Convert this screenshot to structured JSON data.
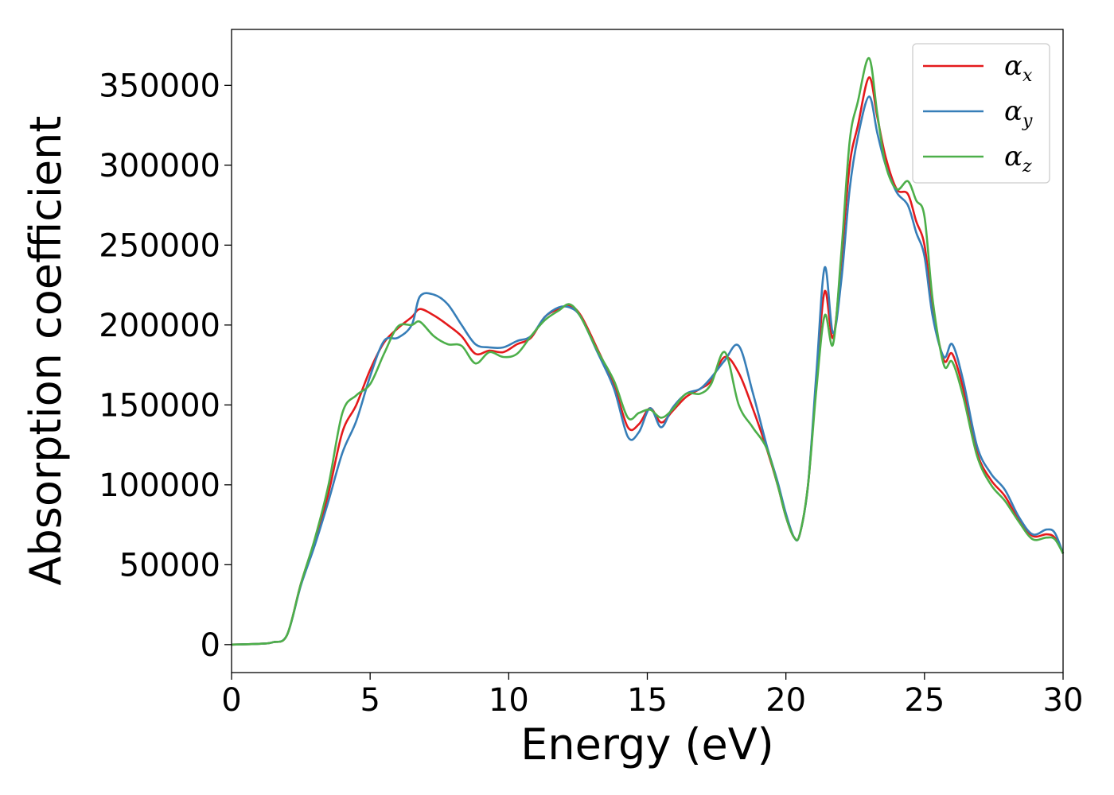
{
  "chart_data": {
    "type": "line",
    "xlabel": "Energy (eV)",
    "ylabel": "Absorption coefficient",
    "xlim": [
      0,
      30
    ],
    "ylim": [
      -17500,
      385000
    ],
    "xticks": [
      0,
      5,
      10,
      15,
      20,
      25,
      30
    ],
    "yticks": [
      0,
      50000,
      100000,
      150000,
      200000,
      250000,
      300000,
      350000
    ],
    "grid": false,
    "legend_position": "top-right",
    "series": [
      {
        "name": "α",
        "subscript": "x",
        "color": "#e41a1c",
        "x": [
          0,
          1,
          1.5,
          2,
          2.5,
          3,
          3.5,
          4,
          4.5,
          5,
          5.5,
          6,
          6.5,
          6.8,
          7.3,
          7.8,
          8.3,
          8.8,
          9.3,
          9.8,
          10.3,
          10.8,
          11.3,
          11.8,
          12.2,
          12.6,
          13.2,
          13.8,
          14.3,
          14.7,
          15.1,
          15.5,
          15.9,
          16.4,
          16.9,
          17.3,
          17.8,
          18.3,
          18.8,
          19.3,
          19.7,
          20.0,
          20.3,
          20.5,
          20.8,
          21.1,
          21.4,
          21.7,
          22.0,
          22.3,
          22.6,
          23.0,
          23.3,
          23.6,
          24.0,
          24.4,
          24.7,
          25.0,
          25.3,
          25.7,
          26.0,
          26.4,
          26.9,
          27.4,
          27.9,
          28.4,
          28.9,
          29.4,
          29.7,
          30.0
        ],
        "values": [
          0,
          500,
          1500,
          6000,
          38000,
          65000,
          95000,
          133000,
          150000,
          172000,
          189000,
          198000,
          205000,
          210000,
          206000,
          200000,
          193000,
          182000,
          184000,
          183000,
          188000,
          192000,
          205000,
          210000,
          212000,
          206000,
          185000,
          162000,
          136000,
          138000,
          148000,
          139000,
          146000,
          155000,
          160000,
          165000,
          180000,
          170000,
          148000,
          123000,
          100000,
          80000,
          67000,
          69000,
          100000,
          165000,
          221000,
          192000,
          240000,
          300000,
          325000,
          355000,
          330000,
          305000,
          285000,
          282000,
          265000,
          250000,
          210000,
          178000,
          182000,
          160000,
          120000,
          103000,
          93000,
          78000,
          68000,
          69000,
          67000,
          57000
        ]
      },
      {
        "name": "α",
        "subscript": "y",
        "color": "#377eb8",
        "x": [
          0,
          1,
          1.5,
          2,
          2.5,
          3,
          3.5,
          4,
          4.5,
          5,
          5.5,
          6,
          6.5,
          6.8,
          7.3,
          7.8,
          8.3,
          8.8,
          9.3,
          9.8,
          10.3,
          10.8,
          11.3,
          11.8,
          12.2,
          12.6,
          13.2,
          13.8,
          14.3,
          14.7,
          15.1,
          15.5,
          15.9,
          16.4,
          16.9,
          17.3,
          17.8,
          18.3,
          18.8,
          19.3,
          19.7,
          20.0,
          20.3,
          20.5,
          20.8,
          21.1,
          21.4,
          21.7,
          22.0,
          22.3,
          22.6,
          23.0,
          23.3,
          23.6,
          24.0,
          24.4,
          24.7,
          25.0,
          25.3,
          25.7,
          26.0,
          26.4,
          26.9,
          27.4,
          27.9,
          28.4,
          28.9,
          29.4,
          29.7,
          30.0
        ],
        "values": [
          0,
          500,
          1500,
          6000,
          37000,
          62000,
          90000,
          120000,
          140000,
          168000,
          190000,
          192000,
          200000,
          218000,
          219000,
          213000,
          200000,
          188000,
          186000,
          186000,
          190000,
          193000,
          205000,
          211000,
          211000,
          205000,
          183000,
          160000,
          130000,
          133000,
          148000,
          136000,
          148000,
          157000,
          160000,
          167000,
          178000,
          187000,
          158000,
          125000,
          102000,
          82000,
          67000,
          69000,
          100000,
          170000,
          236000,
          195000,
          228000,
          285000,
          318000,
          343000,
          320000,
          300000,
          283000,
          275000,
          258000,
          243000,
          205000,
          180000,
          188000,
          165000,
          124000,
          107000,
          97000,
          80000,
          69000,
          72000,
          70000,
          57000
        ]
      },
      {
        "name": "α",
        "subscript": "z",
        "color": "#4daf4a",
        "x": [
          0,
          1,
          1.5,
          2,
          2.5,
          3,
          3.5,
          4,
          4.5,
          5,
          5.5,
          6,
          6.5,
          6.8,
          7.3,
          7.8,
          8.3,
          8.8,
          9.3,
          9.8,
          10.3,
          10.8,
          11.3,
          11.8,
          12.2,
          12.6,
          13.2,
          13.8,
          14.3,
          14.7,
          15.1,
          15.5,
          15.9,
          16.4,
          16.9,
          17.3,
          17.8,
          18.3,
          18.8,
          19.3,
          19.7,
          20.0,
          20.3,
          20.5,
          20.8,
          21.1,
          21.4,
          21.7,
          22.0,
          22.3,
          22.6,
          23.0,
          23.3,
          23.6,
          24.0,
          24.4,
          24.7,
          25.0,
          25.3,
          25.7,
          26.0,
          26.4,
          26.9,
          27.4,
          27.9,
          28.4,
          28.9,
          29.4,
          29.7,
          30.0
        ],
        "values": [
          0,
          500,
          1500,
          6000,
          38000,
          66000,
          100000,
          145000,
          156000,
          163000,
          182000,
          199000,
          200000,
          202000,
          193000,
          188000,
          187000,
          176000,
          183000,
          180000,
          182000,
          193000,
          203000,
          209000,
          213000,
          205000,
          184000,
          165000,
          142000,
          145000,
          147000,
          142000,
          147000,
          157000,
          157000,
          163000,
          183000,
          150000,
          136000,
          123000,
          100000,
          80000,
          67000,
          69000,
          100000,
          160000,
          206000,
          188000,
          245000,
          315000,
          340000,
          367000,
          332000,
          300000,
          285000,
          290000,
          278000,
          268000,
          215000,
          175000,
          177000,
          155000,
          118000,
          100000,
          90000,
          77000,
          66000,
          67000,
          66000,
          57000
        ]
      }
    ]
  }
}
